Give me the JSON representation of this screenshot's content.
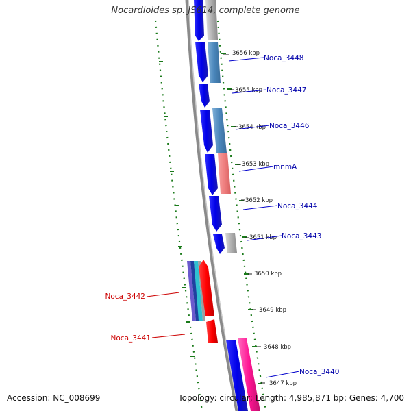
{
  "title": "Nocardioides sp. JS614, complete genome",
  "accession": "Accession: NC_008699",
  "topology": "Topology: circular; Length: 4,985,871 bp; Genes: 4,700",
  "kbp_marks": [
    "3656 kbp",
    "3655 kbp",
    "3654 kbp",
    "3653 kbp",
    "3652 kbp",
    "3651 kbp",
    "3650 kbp",
    "3649 kbp",
    "3648 kbp",
    "3647 kbp"
  ],
  "right_genes": [
    "Noca_3448",
    "Noca_3447",
    "Noca_3446",
    "mnmA",
    "Noca_3444",
    "Noca_3443",
    "Noca_3440"
  ],
  "left_genes": [
    "Noca_3442",
    "Noca_3441"
  ],
  "colors": {
    "cds_forward": "#1010e0",
    "cds_reverse": "#ff1010",
    "gc_skew": "#1a7a1a",
    "backbone": "#8a8a8a",
    "right_label": "#0000aa",
    "left_label": "#cc0000"
  }
}
